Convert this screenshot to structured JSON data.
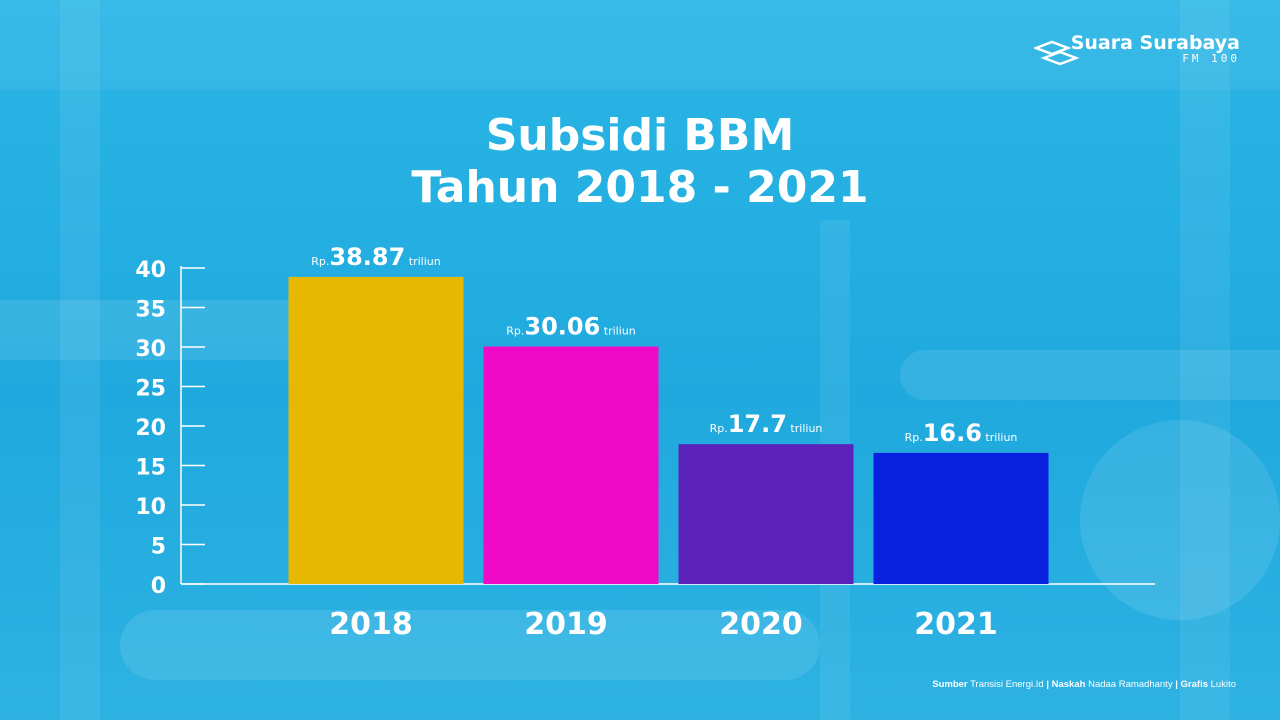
{
  "brand": {
    "name": "Suara Surabaya",
    "sub": "FM 100"
  },
  "title": {
    "line1": "Subsidi BBM",
    "line2": "Tahun 2018 - 2021"
  },
  "colors": {
    "background": "#22ade1",
    "axis": "#ffffff",
    "text": "#ffffff"
  },
  "chart_data": {
    "type": "bar",
    "title": "Subsidi BBM Tahun 2018 - 2021",
    "categories": [
      "2018",
      "2019",
      "2020",
      "2021"
    ],
    "values": [
      38.87,
      30.06,
      17.7,
      16.6
    ],
    "colors": [
      "#e6b800",
      "#f00ac8",
      "#5a22b8",
      "#0820e0"
    ],
    "labels": [
      {
        "prefix": "Rp.",
        "value": "38.87",
        "unit": "triliun"
      },
      {
        "prefix": "Rp.",
        "value": "30.06",
        "unit": "triliun"
      },
      {
        "prefix": "Rp.",
        "value": "17.7",
        "unit": "triliun"
      },
      {
        "prefix": "Rp.",
        "value": "16.6",
        "unit": "triliun"
      }
    ],
    "yticks": [
      0,
      5,
      10,
      15,
      20,
      25,
      30,
      35,
      40
    ],
    "ylim": [
      0,
      40
    ],
    "xlabel": "",
    "ylabel": "",
    "grid": false
  },
  "footer": {
    "source_label": "Sumber",
    "source": "Transisi Energi.Id",
    "writer_label": "Naskah",
    "writer": "Nadaa Ramadhanty",
    "graphic_label": "Grafis",
    "graphic": "Lukito",
    "sep": "|"
  }
}
